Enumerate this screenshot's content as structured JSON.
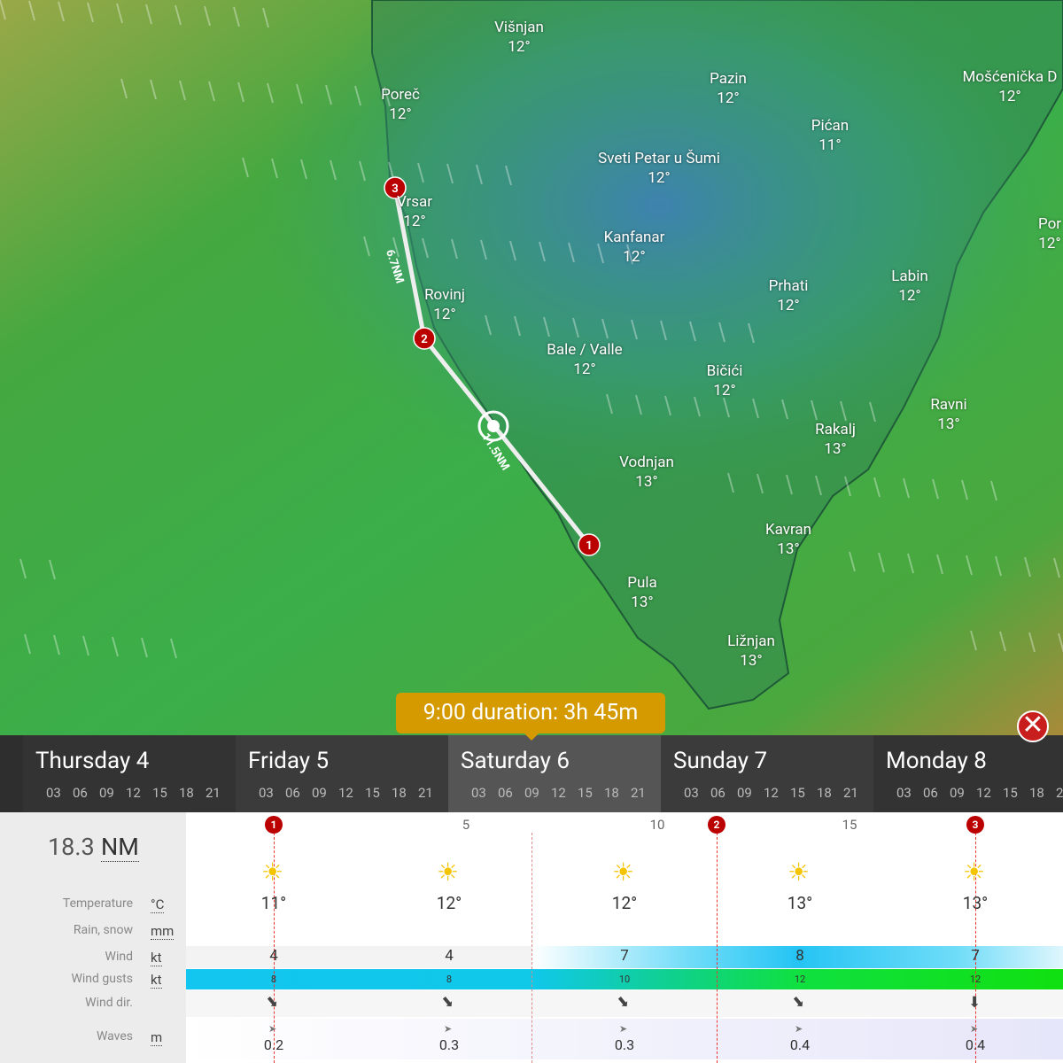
{
  "map": {
    "places": [
      {
        "name": "Višnjan",
        "temp": "12°"
      },
      {
        "name": "Poreč",
        "temp": "12°"
      },
      {
        "name": "Pazin",
        "temp": "12°"
      },
      {
        "name": "Mošćenička D",
        "temp": "12°"
      },
      {
        "name": "Pićan",
        "temp": "11°"
      },
      {
        "name": "Sveti Petar u Šumi",
        "temp": "12°"
      },
      {
        "name": "Vrsar",
        "temp": "12°"
      },
      {
        "name": "Kanfanar",
        "temp": "12°"
      },
      {
        "name": "Rovinj",
        "temp": "12°"
      },
      {
        "name": "Prhati",
        "temp": "12°"
      },
      {
        "name": "Labin",
        "temp": "12°"
      },
      {
        "name": "Por",
        "temp": "12°"
      },
      {
        "name": "Bale / Valle",
        "temp": "12°"
      },
      {
        "name": "Bičići",
        "temp": "12°"
      },
      {
        "name": "Ravni",
        "temp": "13°"
      },
      {
        "name": "Rakalj",
        "temp": "13°"
      },
      {
        "name": "Vodnjan",
        "temp": "13°"
      },
      {
        "name": "Kavran",
        "temp": "13°"
      },
      {
        "name": "Pula",
        "temp": "13°"
      },
      {
        "name": "Ližnjan",
        "temp": "13°"
      }
    ]
  },
  "route": {
    "waypoints": [
      "1",
      "2",
      "3"
    ],
    "legs": [
      "6.7NM",
      "11.5NM"
    ]
  },
  "badge": "9:00 duration: 3h 45m",
  "timeline": {
    "days": [
      "Thursday 4",
      "Friday 5",
      "Saturday 6",
      "Sunday 7",
      "Monday 8"
    ],
    "hours": [
      "03",
      "06",
      "09",
      "12",
      "15",
      "18",
      "21"
    ]
  },
  "distance": {
    "value": "18.3",
    "unit": "NM"
  },
  "ruler": [
    "5",
    "10",
    "15"
  ],
  "rows": [
    {
      "label": "Temperature",
      "unit": "°C"
    },
    {
      "label": "Rain, snow",
      "unit": "mm"
    },
    {
      "label": "Wind",
      "unit": "kt"
    },
    {
      "label": "Wind gusts",
      "unit": "kt"
    },
    {
      "label": "Wind dir."
    },
    {
      "label": "Waves",
      "unit": "m"
    }
  ],
  "forecast": {
    "temperature": [
      "11°",
      "12°",
      "12°",
      "13°",
      "13°"
    ],
    "wind": [
      "4",
      "4",
      "7",
      "8",
      "7"
    ],
    "gusts": [
      "8",
      "8",
      "10",
      "12",
      "12"
    ],
    "waves": [
      "0.2",
      "0.3",
      "0.3",
      "0.4",
      "0.4"
    ]
  }
}
